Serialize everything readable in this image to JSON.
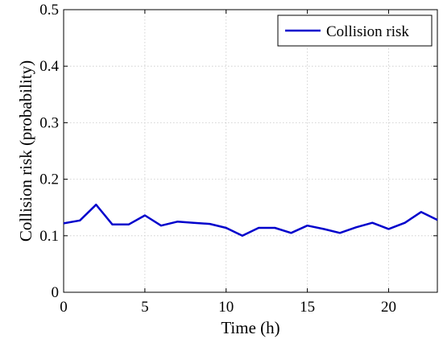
{
  "chart_data": {
    "type": "line",
    "title": "",
    "xlabel": "Time (h)",
    "ylabel": "Collision risk (probability)",
    "xlim": [
      0,
      23
    ],
    "ylim": [
      0,
      0.5
    ],
    "xticks": [
      0,
      5,
      10,
      15,
      20
    ],
    "yticks": [
      0,
      0.1,
      0.2,
      0.3,
      0.4,
      0.5
    ],
    "xtick_labels": [
      "0",
      "5",
      "10",
      "15",
      "20"
    ],
    "ytick_labels": [
      "0",
      "0.1",
      "0.2",
      "0.3",
      "0.4",
      "0.5"
    ],
    "grid": true,
    "legend_position": "top-right",
    "series": [
      {
        "name": "Collision risk",
        "color": "#0000cc",
        "x": [
          0,
          1,
          2,
          3,
          4,
          5,
          6,
          7,
          8,
          9,
          10,
          11,
          12,
          13,
          14,
          15,
          16,
          17,
          18,
          19,
          20,
          21,
          22,
          23
        ],
        "values": [
          0.122,
          0.127,
          0.155,
          0.12,
          0.12,
          0.136,
          0.118,
          0.125,
          0.123,
          0.121,
          0.114,
          0.1,
          0.114,
          0.114,
          0.105,
          0.118,
          0.112,
          0.105,
          0.115,
          0.123,
          0.112,
          0.123,
          0.142,
          0.128
        ]
      }
    ]
  }
}
